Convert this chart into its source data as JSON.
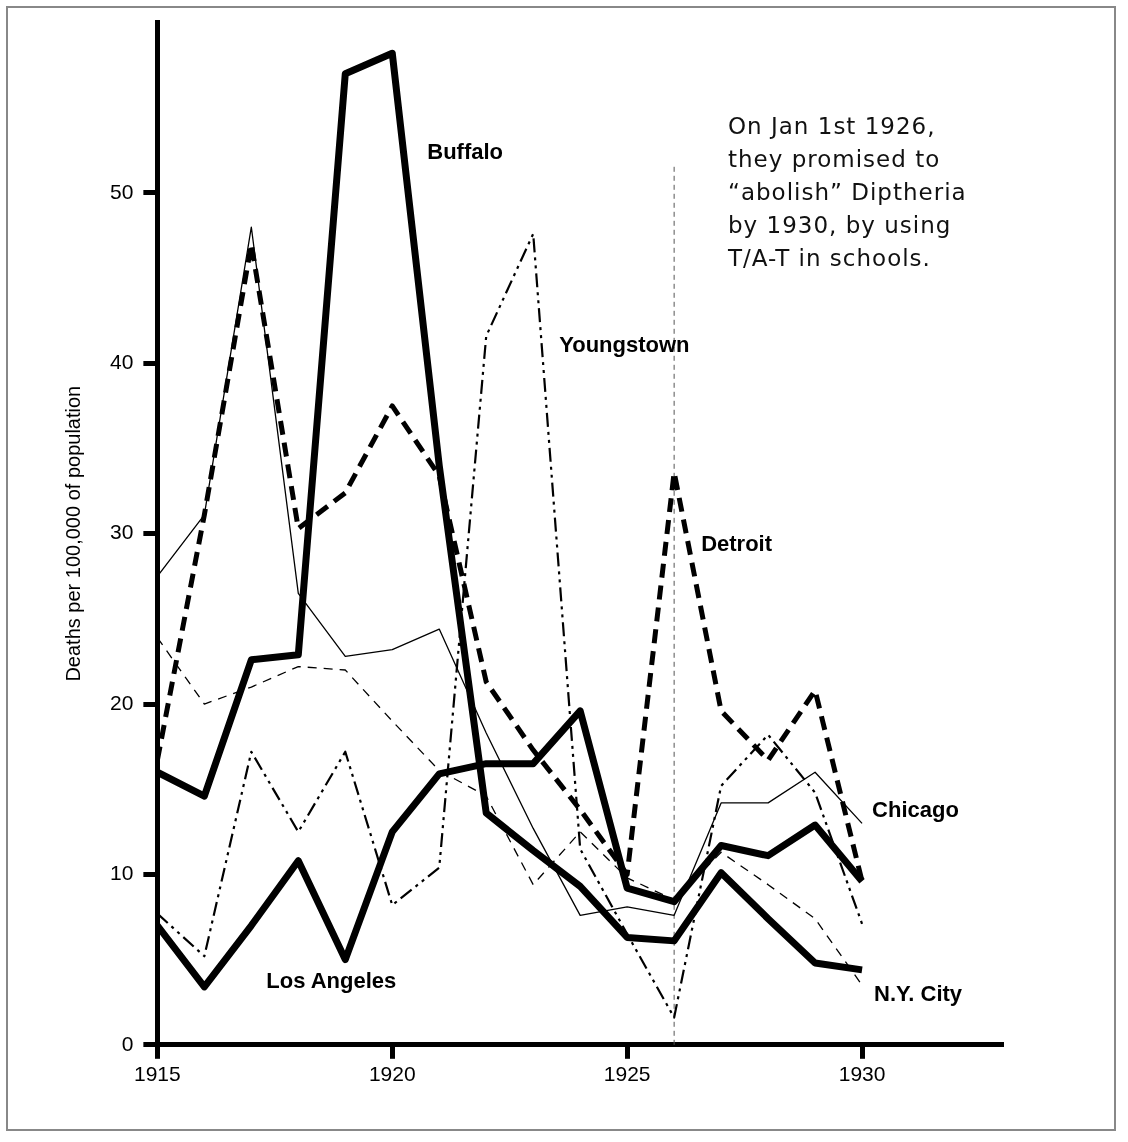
{
  "chart_data": {
    "type": "line",
    "ylabel": "Deaths per 100,000 of population",
    "x": [
      1915,
      1916,
      1917,
      1918,
      1919,
      1920,
      1921,
      1922,
      1923,
      1924,
      1925,
      1926,
      1927,
      1928,
      1929,
      1930
    ],
    "series": [
      {
        "name": "Buffalo",
        "color": "#000000",
        "line_style": "solid",
        "values": [
          16.0,
          14.6,
          22.6,
          22.9,
          57.0,
          58.2,
          34.0,
          13.6,
          11.4,
          9.3,
          6.3,
          6.1,
          10.1,
          7.4,
          4.8,
          4.4
        ]
      },
      {
        "name": "Youngstown",
        "color": "#000000",
        "line_style": "dotted",
        "values": [
          7.7,
          5.2,
          17.2,
          12.5,
          17.2,
          8.2,
          10.4,
          41.6,
          47.6,
          11.5,
          6.5,
          1.6,
          15.2,
          18.2,
          14.8,
          7.1
        ]
      },
      {
        "name": "Detroit",
        "color": "#000000",
        "line_style": "dashed",
        "values": [
          16.7,
          31.1,
          47.0,
          30.3,
          32.4,
          37.5,
          33.4,
          21.3,
          17.3,
          13.8,
          10.0,
          33.6,
          19.6,
          16.7,
          20.8,
          9.6
        ]
      },
      {
        "name": "Chicago",
        "color": "#000000",
        "line_style": "solid",
        "values": [
          27.5,
          31.1,
          48.0,
          26.5,
          22.8,
          23.2,
          24.4,
          18.3,
          12.7,
          7.6,
          8.1,
          7.6,
          14.2,
          14.2,
          16.0,
          13.0
        ]
      },
      {
        "name": "N.Y. City",
        "color": "#000000",
        "line_style": "dashed",
        "values": [
          23.9,
          20.0,
          21.0,
          22.2,
          22.0,
          19.0,
          16.1,
          14.6,
          9.4,
          12.5,
          9.8,
          8.5,
          11.3,
          9.4,
          7.4,
          3.5
        ]
      },
      {
        "name": "Los Angeles",
        "color": "#000000",
        "line_style": "solid",
        "values": [
          7.0,
          3.4,
          7.0,
          10.8,
          5.0,
          12.5,
          15.9,
          16.5,
          16.5,
          19.6,
          9.2,
          8.4,
          11.7,
          11.1,
          12.9,
          9.6
        ]
      }
    ],
    "xlim": [
      1915,
      1933
    ],
    "xticks": [
      1915,
      1920,
      1925,
      1930
    ],
    "ylim": [
      0,
      60
    ],
    "yticks": [
      0,
      10,
      20,
      30,
      40,
      50
    ],
    "ref_lines": [
      {
        "axis": "x",
        "value": 1926,
        "color": "#555555",
        "line_style": "dotted"
      }
    ],
    "annotations": [
      "On Jan 1st 1926, they promised to “abolish” Diptheria by 1930, by using T/A-T in schools."
    ],
    "grid": false,
    "legend": false,
    "marker": "none"
  }
}
